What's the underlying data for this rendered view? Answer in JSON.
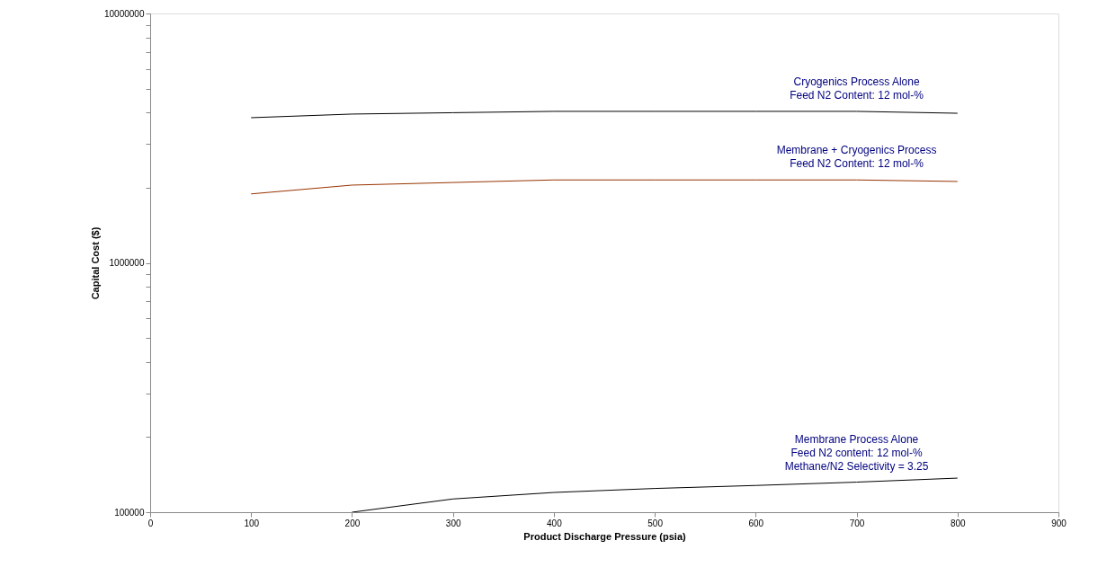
{
  "chart_data": {
    "type": "line",
    "xlabel": "Product Discharge Pressure (psia)",
    "ylabel": "Capital Cost ($)",
    "x": [
      100,
      200,
      300,
      400,
      500,
      600,
      700,
      800
    ],
    "series": [
      {
        "color": "#000000",
        "values": [
          3820000,
          3950000,
          4000000,
          4050000,
          4050000,
          4050000,
          4050000,
          3980000
        ]
      },
      {
        "color": "#993300",
        "values": [
          1890000,
          2050000,
          2100000,
          2150000,
          2150000,
          2150000,
          2150000,
          2120000
        ]
      },
      {
        "color": "#000000",
        "values": [
          null,
          100000,
          113000,
          120000,
          124500,
          128000,
          132000,
          137000
        ]
      }
    ],
    "log": "y",
    "xlim": [
      0,
      900
    ],
    "xticks": [
      0,
      100,
      200,
      300,
      400,
      500,
      600,
      700,
      800,
      900
    ],
    "ylim": [
      100000,
      10000000
    ],
    "yticks": [
      100000,
      {
        "value": 200000,
        "label": null
      },
      {
        "value": 300000,
        "label": null
      },
      {
        "value": 400000,
        "label": null
      },
      {
        "value": 500000,
        "label": null
      },
      {
        "value": 600000,
        "label": null
      },
      {
        "value": 700000,
        "label": null
      },
      {
        "value": 800000,
        "label": null
      },
      {
        "value": 900000,
        "label": null
      },
      1000000,
      {
        "value": 2000000,
        "label": null
      },
      {
        "value": 3000000,
        "label": null
      },
      {
        "value": 4000000,
        "label": null
      },
      {
        "value": 5000000,
        "label": null
      },
      {
        "value": 6000000,
        "label": null
      },
      {
        "value": 7000000,
        "label": null
      },
      {
        "value": 8000000,
        "label": null
      },
      {
        "value": 9000000,
        "label": null
      },
      10000000
    ],
    "annotations": [
      "Cryogenics Process Alone\nFeed N2 Content: 12 mol-%",
      "Membrane + Cryogenics Process\nFeed N2 Content: 12 mol-%",
      "Membrane Process Alone\nFeed N2 content: 12 mol-%\nMethane/N2 Selectivity = 3.25"
    ],
    "grid": false,
    "legend": false
  }
}
